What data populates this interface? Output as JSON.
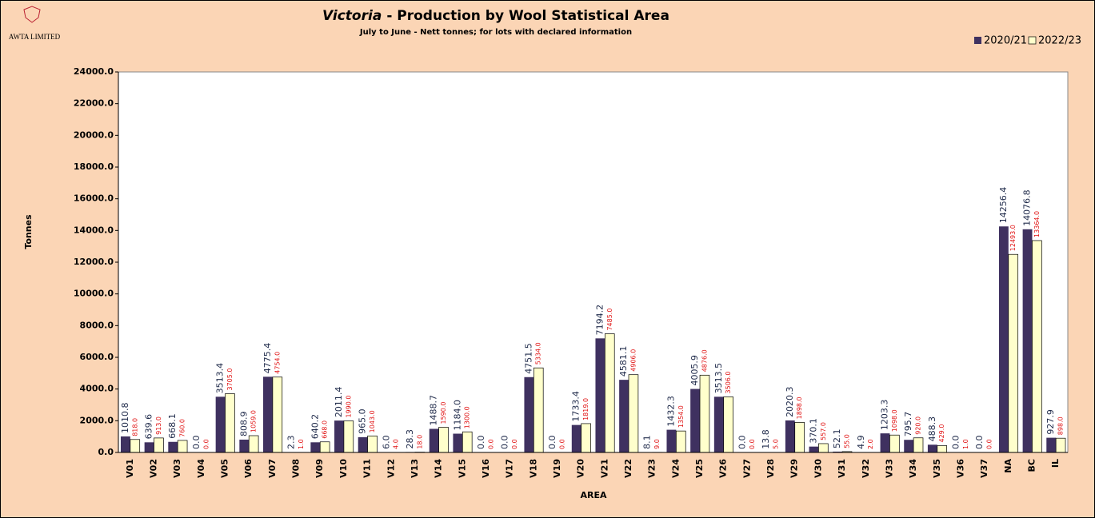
{
  "logo": "AWTA LIMITED",
  "chart_data": {
    "type": "bar",
    "title": [
      "Victoria",
      "- Production by Wool Statistical Area"
    ],
    "subtitle": "July to June - Nett tonnes; for lots with declared information",
    "y_label": "Tonnes",
    "x_label": "AREA",
    "legend": "top-right",
    "categories": [
      "V01",
      "V02",
      "V03",
      "V04",
      "V05",
      "V06",
      "V07",
      "V08",
      "V09",
      "V10",
      "V11",
      "V12",
      "V13",
      "V14",
      "V15",
      "V16",
      "V17",
      "V18",
      "V19",
      "V20",
      "V21",
      "V22",
      "V23",
      "V24",
      "V25",
      "V26",
      "V27",
      "V28",
      "V29",
      "V30",
      "V31",
      "V32",
      "V33",
      "V34",
      "V35",
      "V36",
      "V37",
      "NA",
      "BC",
      "IL"
    ],
    "series": [
      {
        "name": "2020/21",
        "color": "#3f3160",
        "values": [
          1010.8,
          639.6,
          668.1,
          0,
          3513.4,
          808.9,
          4775.4,
          2.3,
          640.2,
          2011.4,
          965,
          6,
          28.3,
          1488.7,
          1184,
          0,
          0,
          4751.5,
          0,
          1733.4,
          7194.2,
          4581.1,
          8.1,
          1432.3,
          4005.9,
          3513.5,
          0,
          13.8,
          2020.3,
          370.1,
          52.1,
          4.9,
          1203.3,
          795.7,
          488.3,
          0,
          0,
          14256.4,
          14076.8,
          927.9
        ],
        "value_labels": [
          "1010.8",
          "639.6",
          "668.1",
          "0.0",
          "3513.4",
          "808.9",
          "4775.4",
          "2.3",
          "640.2",
          "2011.4",
          "965.0",
          "6.0",
          "28.3",
          "1488.7",
          "1184.0",
          "0.0",
          "0.0",
          "4751.5",
          "0.0",
          "1733.4",
          "7194.2",
          "4581.1",
          "8.1",
          "1432.3",
          "4005.9",
          "3513.5",
          "0.0",
          "13.8",
          "2020.3",
          "370.1",
          "52.1",
          "4.9",
          "1203.3",
          "795.7",
          "488.3",
          "0.0",
          "0.0",
          "14256.4",
          "14076.8",
          "927.9"
        ]
      },
      {
        "name": "2022/23",
        "color": "#ffffcc",
        "values": [
          818,
          913,
          760,
          0,
          3705,
          1059,
          4754,
          1,
          668,
          1990,
          1043,
          4,
          18,
          1590,
          1300,
          0,
          0,
          5334,
          0,
          1819,
          7485,
          4906,
          9,
          1354,
          4876,
          3506,
          0,
          5,
          1898,
          557,
          55,
          2,
          1098,
          920,
          429,
          1,
          0,
          12493,
          13364,
          898
        ],
        "value_labels": [
          "818.0",
          "913.0",
          "760.0",
          "0.0",
          "3705.0",
          "1059.0",
          "4754.0",
          "1.0",
          "668.0",
          "1990.0",
          "1043.0",
          "4.0",
          "18.0",
          "1590.0",
          "1300.0",
          "0.0",
          "0.0",
          "5334.0",
          "0.0",
          "1819.0",
          "7485.0",
          "4906.0",
          "9.0",
          "1354.0",
          "4876.0",
          "3506.0",
          "0.0",
          "5.0",
          "1898.0",
          "557.0",
          "55.0",
          "2.0",
          "1098.0",
          "920.0",
          "429.0",
          "1.0",
          "0.0",
          "12493.0",
          "13364.0",
          "898.0"
        ]
      }
    ],
    "ylim": [
      0,
      24000
    ],
    "yticks": [
      {
        "value": 0,
        "label": "0.0"
      },
      {
        "value": 2000,
        "label": "2000.0"
      },
      {
        "value": 4000,
        "label": "4000.0"
      },
      {
        "value": 6000,
        "label": "6000.0"
      },
      {
        "value": 8000,
        "label": "8000.0"
      },
      {
        "value": 10000,
        "label": "10000.0"
      },
      {
        "value": 12000,
        "label": "12000.0"
      },
      {
        "value": 14000,
        "label": "14000.0"
      },
      {
        "value": 16000,
        "label": "16000.0"
      },
      {
        "value": 18000,
        "label": "18000.0"
      },
      {
        "value": 20000,
        "label": "20000.0"
      },
      {
        "value": 22000,
        "label": "22000.0"
      },
      {
        "value": 24000,
        "label": "24000.0"
      }
    ],
    "grid": false
  }
}
